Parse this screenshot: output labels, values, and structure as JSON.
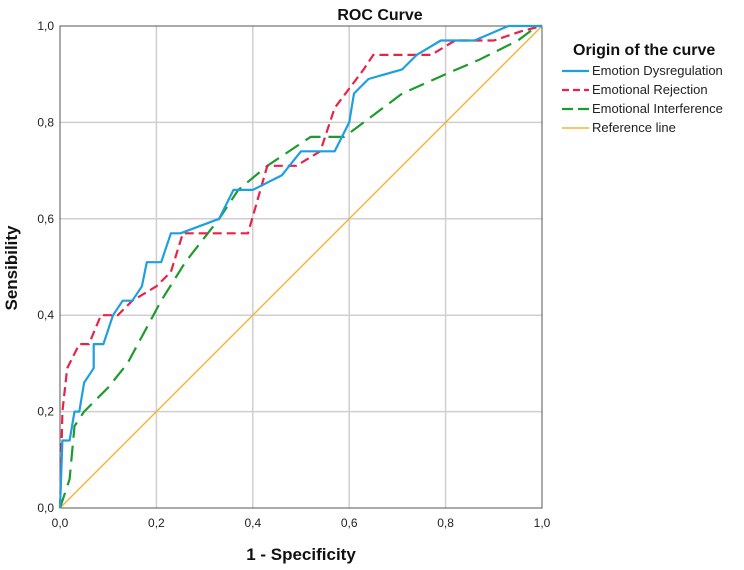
{
  "chart_data": {
    "type": "line",
    "title": "ROC Curve",
    "xlabel": "1 - Specificity",
    "ylabel": "Sensibility",
    "xlim": [
      0,
      1
    ],
    "ylim": [
      0,
      1
    ],
    "grid": true,
    "x_ticks": [
      "0,0",
      "0,2",
      "0,4",
      "0,6",
      "0,8",
      "1,0"
    ],
    "y_ticks": [
      "0,0",
      "0,2",
      "0,4",
      "0,6",
      "0,8",
      "1,0"
    ],
    "legend": {
      "title": "Origin of the curve",
      "placement": "top-right"
    },
    "series": [
      {
        "name": "Emotion Dysregulation",
        "color": "#1f9ee0",
        "style": "solid",
        "points": [
          [
            0,
            0
          ],
          [
            0.005,
            0.14
          ],
          [
            0.02,
            0.14
          ],
          [
            0.03,
            0.2
          ],
          [
            0.04,
            0.2
          ],
          [
            0.05,
            0.26
          ],
          [
            0.07,
            0.29
          ],
          [
            0.07,
            0.34
          ],
          [
            0.09,
            0.34
          ],
          [
            0.1,
            0.37
          ],
          [
            0.11,
            0.4
          ],
          [
            0.13,
            0.43
          ],
          [
            0.15,
            0.43
          ],
          [
            0.17,
            0.46
          ],
          [
            0.18,
            0.51
          ],
          [
            0.21,
            0.51
          ],
          [
            0.23,
            0.57
          ],
          [
            0.25,
            0.57
          ],
          [
            0.33,
            0.6
          ],
          [
            0.36,
            0.66
          ],
          [
            0.38,
            0.66
          ],
          [
            0.4,
            0.66
          ],
          [
            0.46,
            0.69
          ],
          [
            0.5,
            0.74
          ],
          [
            0.57,
            0.74
          ],
          [
            0.6,
            0.8
          ],
          [
            0.61,
            0.86
          ],
          [
            0.64,
            0.89
          ],
          [
            0.71,
            0.91
          ],
          [
            0.74,
            0.94
          ],
          [
            0.79,
            0.97
          ],
          [
            0.86,
            0.97
          ],
          [
            0.93,
            1.0
          ],
          [
            1,
            1
          ]
        ]
      },
      {
        "name": "Emotional Rejection",
        "color": "#e8224a",
        "style": "dashed",
        "points": [
          [
            0,
            0
          ],
          [
            0.005,
            0.2
          ],
          [
            0.015,
            0.29
          ],
          [
            0.04,
            0.34
          ],
          [
            0.06,
            0.34
          ],
          [
            0.085,
            0.4
          ],
          [
            0.12,
            0.4
          ],
          [
            0.15,
            0.43
          ],
          [
            0.2,
            0.46
          ],
          [
            0.23,
            0.49
          ],
          [
            0.255,
            0.57
          ],
          [
            0.39,
            0.57
          ],
          [
            0.43,
            0.71
          ],
          [
            0.49,
            0.71
          ],
          [
            0.54,
            0.74
          ],
          [
            0.57,
            0.83
          ],
          [
            0.63,
            0.91
          ],
          [
            0.65,
            0.94
          ],
          [
            0.77,
            0.94
          ],
          [
            0.82,
            0.97
          ],
          [
            0.9,
            0.97
          ],
          [
            0.96,
            0.99
          ],
          [
            1,
            1
          ]
        ]
      },
      {
        "name": "Emotional Interference",
        "color": "#1e9a2e",
        "style": "longdash",
        "points": [
          [
            0,
            0
          ],
          [
            0.02,
            0.06
          ],
          [
            0.03,
            0.17
          ],
          [
            0.05,
            0.2
          ],
          [
            0.1,
            0.25
          ],
          [
            0.14,
            0.3
          ],
          [
            0.21,
            0.43
          ],
          [
            0.26,
            0.51
          ],
          [
            0.33,
            0.6
          ],
          [
            0.37,
            0.66
          ],
          [
            0.43,
            0.71
          ],
          [
            0.52,
            0.77
          ],
          [
            0.59,
            0.77
          ],
          [
            0.63,
            0.8
          ],
          [
            0.71,
            0.86
          ],
          [
            0.8,
            0.9
          ],
          [
            0.87,
            0.93
          ],
          [
            0.95,
            0.97
          ],
          [
            0.99,
            1.0
          ],
          [
            1,
            1
          ]
        ]
      },
      {
        "name": "Reference line",
        "color": "#f2b33a",
        "style": "solid-thin",
        "points": [
          [
            0,
            0
          ],
          [
            1,
            1
          ]
        ]
      }
    ]
  }
}
